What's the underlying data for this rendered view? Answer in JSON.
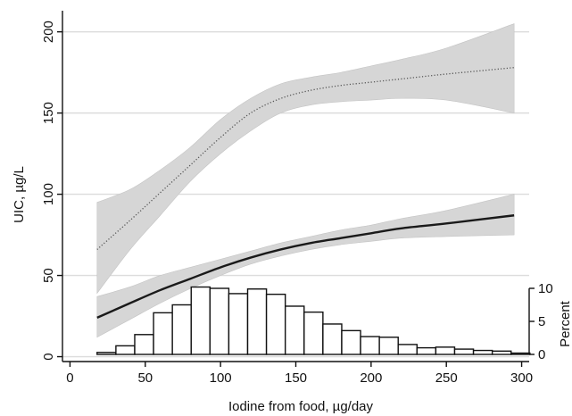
{
  "chart_data": {
    "type": "line",
    "xlabel": "Iodine from food, µg/day",
    "ylabel": "UIC, µg/L",
    "y2label": "Percent",
    "xlim": [
      -5,
      305
    ],
    "ylim": [
      -3,
      213
    ],
    "x_ticks": [
      0,
      50,
      100,
      150,
      200,
      250,
      300
    ],
    "y_ticks": [
      0,
      50,
      100,
      150,
      200
    ],
    "y2_ticks": [
      0,
      5,
      10
    ],
    "grid": true,
    "legend": "none",
    "colors": {
      "line": "#1a1a1a",
      "band": "#d6d6d6",
      "grid": "#dcdcdc",
      "bar_fill": "#ffffff",
      "bar_edge": "#111111"
    },
    "series": [
      {
        "style": "dotted",
        "x": [
          18,
          40,
          60,
          80,
          100,
          120,
          140,
          160,
          180,
          200,
          220,
          250,
          295
        ],
        "y": [
          66,
          84,
          101,
          118,
          135,
          150,
          159,
          164,
          167,
          169,
          171,
          174,
          178
        ],
        "lower": [
          39,
          66,
          87,
          108,
          125,
          139,
          150,
          155,
          157,
          158,
          159,
          158,
          150
        ],
        "upper": [
          95,
          103,
          115,
          129,
          146,
          159,
          168,
          172,
          175,
          179,
          183,
          190,
          205
        ]
      },
      {
        "style": "solid",
        "x": [
          18,
          40,
          60,
          80,
          100,
          120,
          140,
          160,
          180,
          200,
          220,
          250,
          295
        ],
        "y": [
          24,
          33,
          41,
          48,
          55,
          61,
          66,
          70,
          73,
          76,
          79,
          82,
          87
        ],
        "lower": [
          12,
          23,
          33,
          42,
          50,
          57,
          62,
          66,
          69,
          71,
          73,
          74,
          75
        ],
        "upper": [
          37,
          43,
          50,
          55,
          60,
          65,
          70,
          74,
          78,
          81,
          85,
          90,
          100
        ]
      }
    ],
    "histogram": {
      "axis": "Percent",
      "bin_width": 12.5,
      "bin_starts": [
        18,
        30.5,
        43,
        55.5,
        68,
        80.5,
        93,
        105.5,
        118,
        130.5,
        143,
        155.5,
        168,
        180.5,
        193,
        205.5,
        218,
        230.5,
        243,
        255.5,
        268,
        280.5,
        293
      ],
      "values": [
        0.3,
        1.3,
        3.0,
        6.3,
        7.5,
        10.2,
        10.0,
        9.2,
        9.9,
        9.1,
        7.3,
        6.4,
        4.6,
        3.6,
        2.7,
        2.6,
        1.5,
        1.0,
        1.1,
        0.8,
        0.6,
        0.5,
        0.2
      ]
    }
  }
}
